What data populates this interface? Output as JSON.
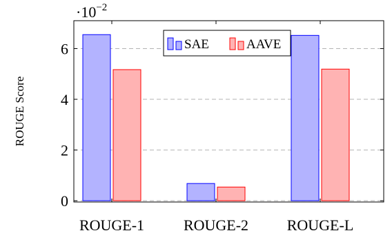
{
  "chart_data": {
    "type": "bar",
    "categories": [
      "ROUGE-1",
      "ROUGE-2",
      "ROUGE-L"
    ],
    "series": [
      {
        "name": "SAE",
        "values": [
          6.55,
          0.68,
          6.52
        ],
        "color": "#b3b3ff",
        "stroke": "#0000ff"
      },
      {
        "name": "AAVE",
        "values": [
          5.17,
          0.54,
          5.19
        ],
        "color": "#ffb3b3",
        "stroke": "#ff0000"
      }
    ],
    "title": "",
    "xlabel": "",
    "ylabel": "ROUGE Score",
    "ylim": [
      -0.05,
      7.1
    ],
    "yticks": [
      0,
      2,
      4,
      6
    ],
    "yscale_note": "·10⁻²",
    "yscale_base": "·10",
    "yscale_exponent": "−2",
    "grid": "horizontal-dashed",
    "legend_position": "top-center"
  }
}
